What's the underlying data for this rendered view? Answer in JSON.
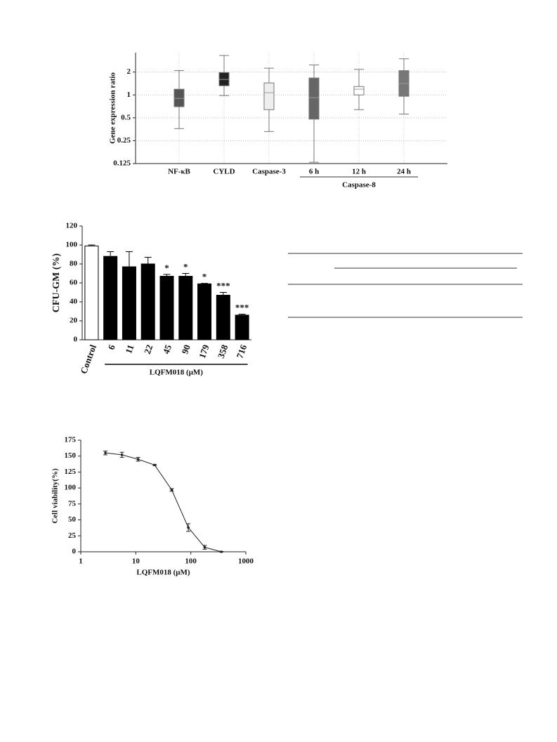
{
  "chart_data": [
    {
      "type": "box",
      "y_label": "Gene expression ratio",
      "log_scale": true,
      "grid": true,
      "categories": [
        "NF-κB",
        "CYLD",
        "Caspase-3",
        "6 h",
        "12 h",
        "24 h"
      ],
      "groups": [
        {
          "label": "Caspase-8",
          "members": [
            3,
            4,
            5
          ]
        }
      ],
      "boxes": [
        {
          "min": 0.36,
          "q1": 0.7,
          "median": 0.9,
          "q3": 1.19,
          "max": 2.09,
          "color": "#555555"
        },
        {
          "min": 0.98,
          "q1": 1.32,
          "median": 1.6,
          "q3": 1.97,
          "max": 3.3,
          "color": "#222222"
        },
        {
          "min": 0.33,
          "q1": 0.64,
          "median": 1.07,
          "q3": 1.44,
          "max": 2.25,
          "color": "#eeeeee"
        },
        {
          "min": 0.13,
          "q1": 0.48,
          "median": 0.92,
          "q3": 1.67,
          "max": 2.48,
          "color": "#666666"
        },
        {
          "min": 0.64,
          "q1": 1.0,
          "median": 1.19,
          "q3": 1.29,
          "max": 2.17,
          "color": "#ffffff"
        },
        {
          "min": 0.56,
          "q1": 0.96,
          "median": 1.41,
          "q3": 2.09,
          "max": 2.99,
          "color": "#777777"
        }
      ],
      "ylim": [
        0.125,
        3.6
      ],
      "yticks": [
        0.125,
        0.25,
        0.5,
        1,
        2
      ]
    },
    {
      "type": "bar",
      "y_label": "CFU-GM (%)",
      "categories": [
        "Control",
        "6",
        "11",
        "22",
        "45",
        "90",
        "179",
        "358",
        "716"
      ],
      "groups": [
        {
          "label": "LQFM018 (μM)",
          "members": [
            1,
            2,
            3,
            4,
            5,
            6,
            7,
            8
          ]
        }
      ],
      "values": [
        99,
        88,
        77,
        80,
        67,
        67,
        59,
        47,
        26
      ],
      "errors": [
        1,
        5,
        16,
        7,
        2,
        3,
        0.5,
        3,
        1
      ],
      "colors": [
        "#ffffff",
        "#000000",
        "#000000",
        "#000000",
        "#000000",
        "#000000",
        "#000000",
        "#000000",
        "#000000"
      ],
      "annotations": [
        null,
        null,
        null,
        null,
        "*",
        "*",
        "*",
        "***",
        "***"
      ],
      "ylim": [
        0,
        120
      ],
      "yticks": [
        0,
        20,
        40,
        60,
        80,
        100,
        120
      ]
    },
    {
      "type": "line",
      "x_label": "LQFM018 (μM)",
      "y_label": "Cell viability(%)",
      "xlog": true,
      "x": [
        2.8,
        5.6,
        11,
        22,
        45,
        90,
        179,
        358
      ],
      "values": [
        155,
        152,
        145,
        136,
        97,
        38,
        7,
        0
      ],
      "errors": [
        3,
        4,
        3,
        1,
        2,
        6,
        3,
        0.5
      ],
      "color": "#222222",
      "xlim": [
        1,
        1000
      ],
      "xticks": [
        1,
        10,
        100,
        1000
      ],
      "ylim": [
        0,
        175
      ],
      "yticks": [
        0,
        25,
        50,
        75,
        100,
        125,
        150,
        175
      ]
    }
  ]
}
